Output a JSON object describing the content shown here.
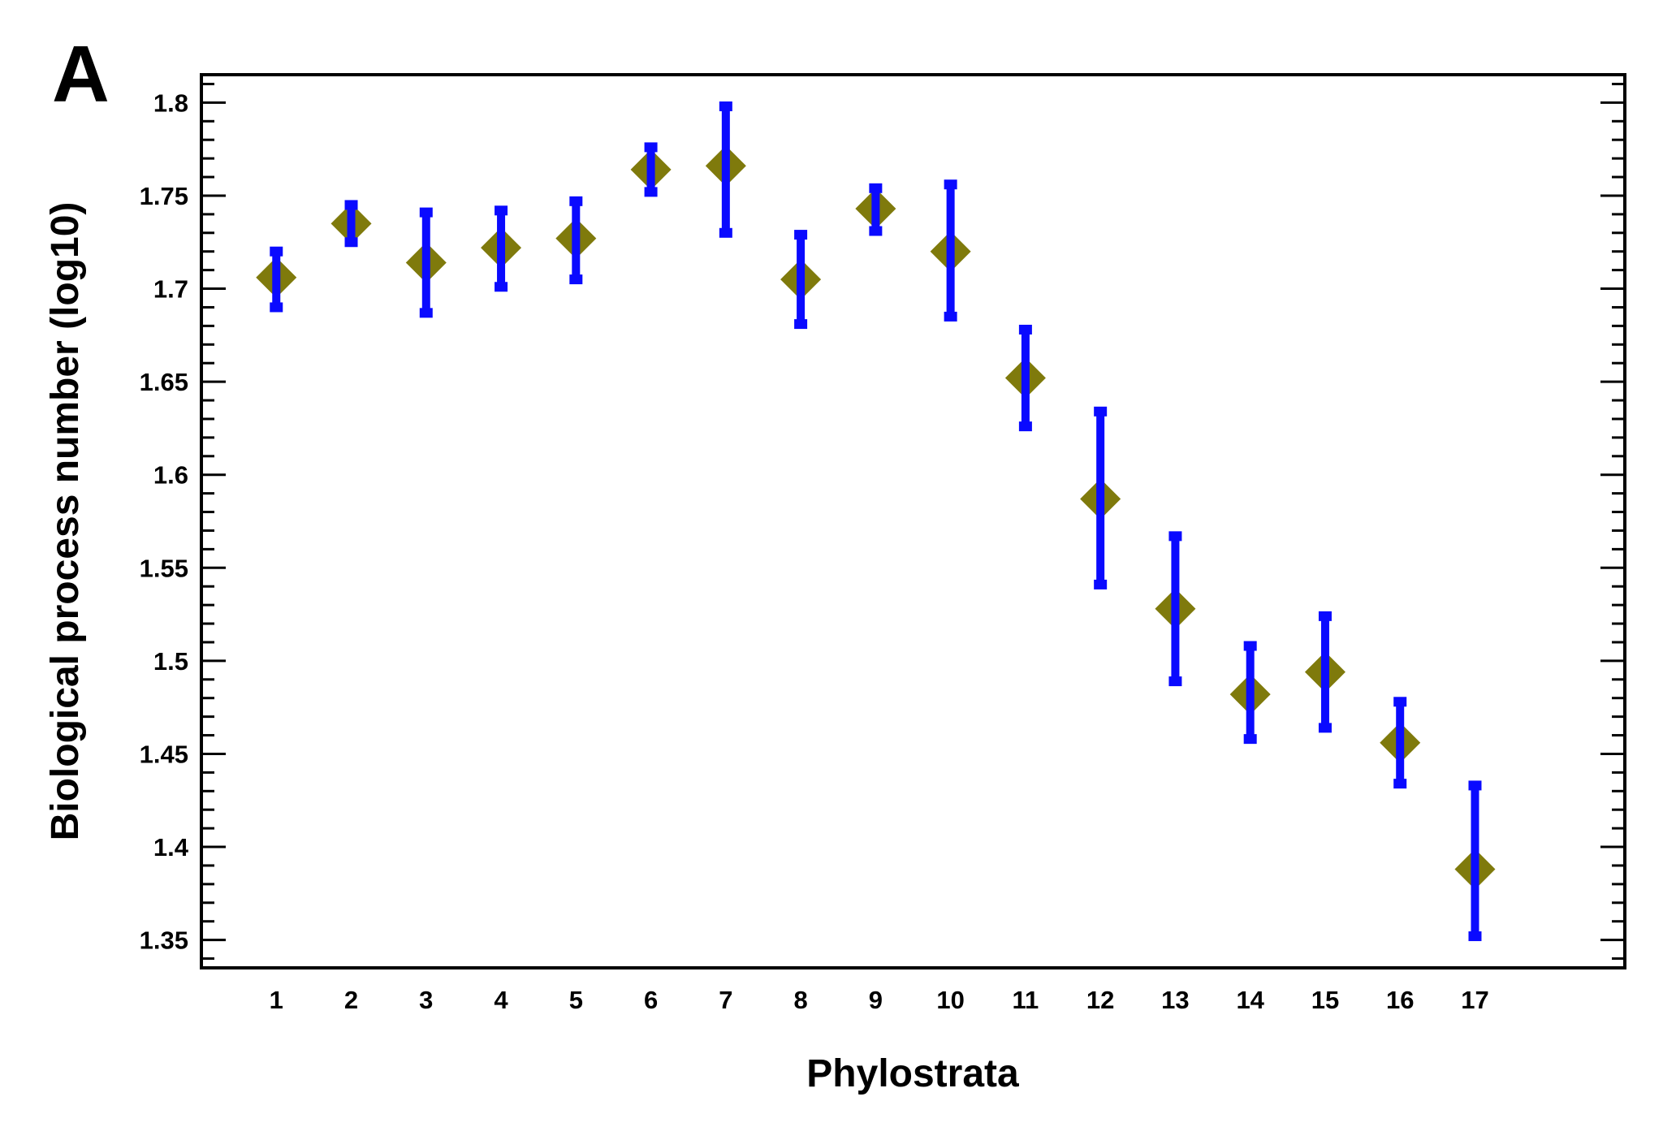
{
  "figure": {
    "panel_label": "A"
  },
  "chart_data": {
    "type": "scatter",
    "title": "",
    "xlabel": "Phylostrata",
    "ylabel": "Biological process number (log10)",
    "xlim": [
      0,
      19
    ],
    "ylim": [
      1.335,
      1.815
    ],
    "x_ticks": [
      1,
      2,
      3,
      4,
      5,
      6,
      7,
      8,
      9,
      10,
      11,
      12,
      13,
      14,
      15,
      16,
      17
    ],
    "x_tick_labels": [
      "1",
      "2",
      "3",
      "4",
      "5",
      "6",
      "7",
      "8",
      "9",
      "10",
      "11",
      "12",
      "13",
      "14",
      "15",
      "16",
      "17"
    ],
    "y_ticks": [
      1.35,
      1.4,
      1.45,
      1.5,
      1.55,
      1.6,
      1.65,
      1.7,
      1.75,
      1.8
    ],
    "y_tick_labels": [
      "1.35",
      "1.4",
      "1.45",
      "1.5",
      "1.55",
      "1.6",
      "1.65",
      "1.7",
      "1.75",
      "1.8"
    ],
    "y_minor_step": 0.01,
    "grid": false,
    "legend": "none",
    "marker_color": "#7f7a0c",
    "errorbar_color": "#0a0aff",
    "series": [
      {
        "x": [
          1,
          2,
          3,
          4,
          5,
          6,
          7,
          8,
          9,
          10,
          11,
          12,
          13,
          14,
          15,
          16,
          17
        ],
        "y": [
          1.706,
          1.735,
          1.714,
          1.722,
          1.727,
          1.764,
          1.766,
          1.705,
          1.743,
          1.72,
          1.652,
          1.587,
          1.528,
          1.482,
          1.494,
          1.456,
          1.388
        ],
        "y_lower": [
          1.69,
          1.725,
          1.687,
          1.701,
          1.705,
          1.752,
          1.73,
          1.681,
          1.731,
          1.685,
          1.626,
          1.541,
          1.489,
          1.458,
          1.464,
          1.434,
          1.352
        ],
        "y_upper": [
          1.72,
          1.745,
          1.741,
          1.742,
          1.747,
          1.776,
          1.798,
          1.729,
          1.754,
          1.756,
          1.678,
          1.634,
          1.567,
          1.508,
          1.524,
          1.478,
          1.433
        ]
      }
    ]
  }
}
